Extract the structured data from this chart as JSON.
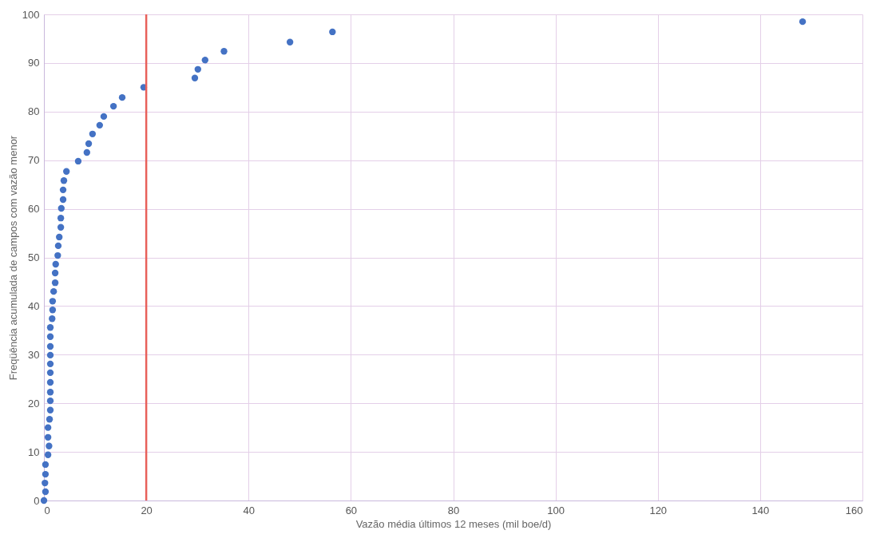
{
  "chart_data": {
    "type": "scatter",
    "xlabel": "Vazão média últimos 12 meses (mil boe/d)",
    "ylabel": "Freqüência acumulada de campos com vazão menor",
    "x": [
      0,
      0.3,
      0.2,
      0.3,
      0.3,
      0.8,
      1.0,
      0.8,
      0.8,
      1.1,
      1.25,
      1.25,
      1.25,
      1.25,
      1.25,
      1.25,
      1.25,
      1.25,
      1.25,
      1.25,
      1.6,
      1.7,
      1.7,
      1.9,
      2.2,
      2.2,
      2.3,
      2.7,
      2.8,
      3.0,
      3.3,
      3.3,
      3.4,
      3.75,
      3.75,
      3.9,
      4.4,
      6.7,
      8.4,
      8.75,
      9.5,
      10.9,
      11.7,
      13.6,
      15.3,
      19.5,
      29.5,
      30.1,
      31.5,
      35.2,
      48.1,
      56.4,
      148.3
    ],
    "series": [
      {
        "color": "#4472c4",
        "values": [
          0,
          1.8,
          3.6,
          5.4,
          7.4,
          9.4,
          11.2,
          13,
          15,
          16.7,
          18.6,
          20.5,
          22.3,
          24.3,
          26.3,
          28.1,
          29.9,
          31.7,
          33.7,
          35.6,
          37.4,
          39.2,
          41,
          43,
          44.8,
          46.8,
          48.6,
          50.4,
          52.4,
          54.2,
          56.2,
          58.1,
          60.1,
          61.9,
          63.9,
          65.8,
          67.7,
          69.8,
          71.6,
          73.4,
          75.4,
          77.2,
          79,
          81.1,
          82.9,
          85,
          86.9,
          88.7,
          90.6,
          92.4,
          94.3,
          96.4,
          98.5
        ]
      }
    ],
    "xlim": [
      0,
      160
    ],
    "xticks": [
      0,
      20,
      40,
      60,
      80,
      100,
      120,
      140,
      160
    ],
    "ylim": [
      0,
      100
    ],
    "yticks": [
      0,
      10,
      20,
      30,
      40,
      50,
      60,
      70,
      80,
      90,
      100
    ],
    "ref_lines": [
      {
        "axis": "x",
        "value": 20,
        "color": "#e8605a"
      }
    ],
    "grid": true,
    "marker": "circle",
    "legend": false
  }
}
